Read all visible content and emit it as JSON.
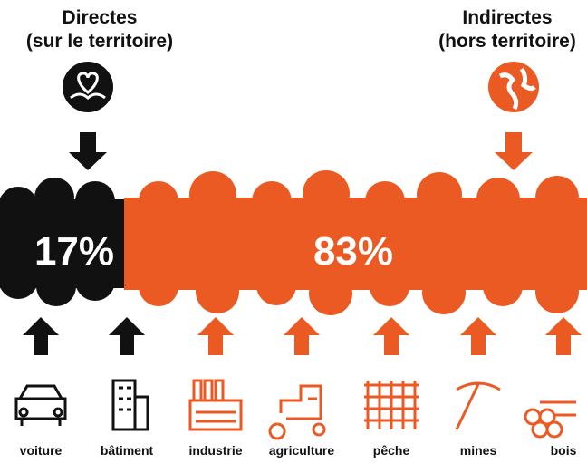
{
  "headers": [
    {
      "title": "Directes",
      "subtitle": "(sur le territoire)"
    },
    {
      "title": "Indirectes",
      "subtitle": "(hors territoire)"
    }
  ],
  "shares": [
    {
      "label": "17%"
    },
    {
      "label": "83%"
    }
  ],
  "sources": [
    "voiture",
    "bâtiment",
    "industrie",
    "agriculture",
    "pêche",
    "mines",
    "bois"
  ]
}
